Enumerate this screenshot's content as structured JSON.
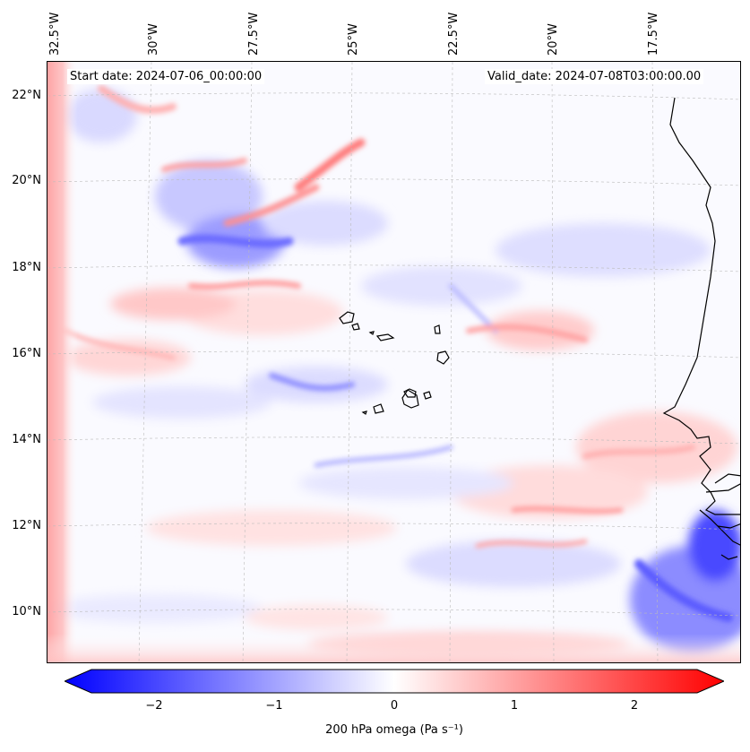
{
  "header": {
    "start_date": "Start date: 2024-07-06_00:00:00",
    "valid_date": "Valid_date: 2024-07-08T03:00:00.00"
  },
  "axes": {
    "lon_labels": [
      "32.5°W",
      "30°W",
      "27.5°W",
      "25°W",
      "22.5°W",
      "20°W",
      "17.5°W"
    ],
    "lat_labels": [
      "22°N",
      "20°N",
      "18°N",
      "16°N",
      "14°N",
      "12°N",
      "10°N"
    ]
  },
  "colorbar": {
    "ticks": [
      "−2",
      "−1",
      "0",
      "1",
      "2"
    ],
    "label": "200 hPa omega (Pa s⁻¹)",
    "range": [
      -2.6,
      2.6
    ],
    "colors": {
      "negative": "#0000ff",
      "neutral": "#ffffff",
      "positive": "#ff0000"
    }
  },
  "map": {
    "variable": "200 hPa omega",
    "colormap": "bwr",
    "coastline_color": "#000000",
    "gridlines": "dashed"
  }
}
